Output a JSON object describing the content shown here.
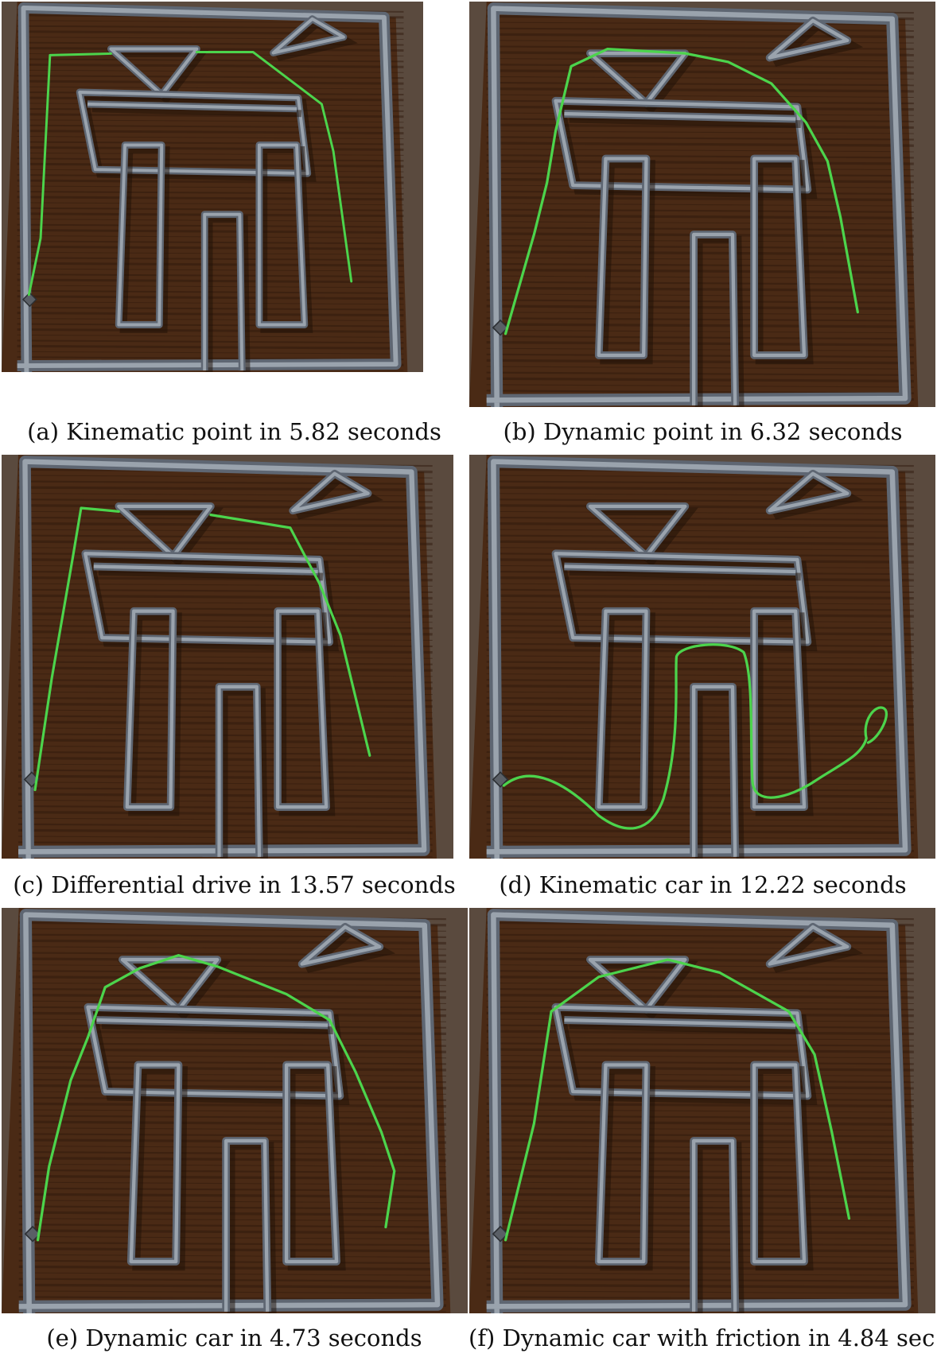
{
  "figure": {
    "panels": [
      {
        "id": "a",
        "caption": "(a) Kinematic point in 5.82 seconds"
      },
      {
        "id": "b",
        "caption": "(b) Dynamic point in 6.32 seconds"
      },
      {
        "id": "c",
        "caption": "(c) Differential drive in 13.57 seconds"
      },
      {
        "id": "d",
        "caption": "(d) Kinematic car in 12.22 seconds"
      },
      {
        "id": "e",
        "caption": "(e) Dynamic car in 4.73 seconds"
      },
      {
        "id": "f",
        "caption": "(f) Dynamic car with friction in 4.84 sec."
      }
    ],
    "colors": {
      "wood": "#4a2a15",
      "wood_dark": "#2d170a",
      "wood_light": "#6b3c1e",
      "wall_top": "#9aa3ad",
      "wall_side": "#5e6672",
      "wall_shadow": "#1e0f06",
      "path": "#4cd44c",
      "floor_edge": "#3a3f47",
      "marble": "#5a4a3e"
    }
  }
}
